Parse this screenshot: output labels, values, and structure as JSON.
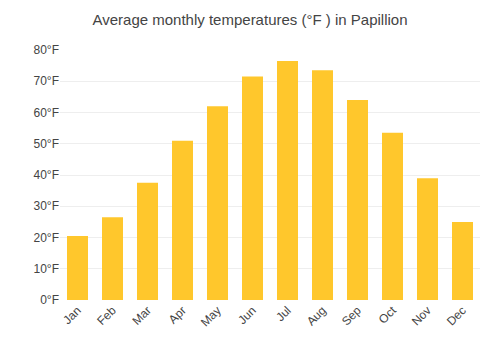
{
  "chart_data": {
    "type": "bar",
    "title": "Average monthly temperatures (°F ) in Papillion",
    "categories": [
      "Jan",
      "Feb",
      "Mar",
      "Apr",
      "May",
      "Jun",
      "Jul",
      "Aug",
      "Sep",
      "Oct",
      "Nov",
      "Dec"
    ],
    "values": [
      20.5,
      26.5,
      37.5,
      51.0,
      62.0,
      71.5,
      76.5,
      73.5,
      64.0,
      53.5,
      39.0,
      25.0
    ],
    "color": "#FFC72C",
    "ylim": [
      0,
      80
    ],
    "yticks": [
      {
        "value": 0,
        "label": "0°F"
      },
      {
        "value": 10,
        "label": "10°F"
      },
      {
        "value": 20,
        "label": "20°F"
      },
      {
        "value": 30,
        "label": "30°F"
      },
      {
        "value": 40,
        "label": "40°F"
      },
      {
        "value": 50,
        "label": "50°F"
      },
      {
        "value": 60,
        "label": "60°F"
      },
      {
        "value": 70,
        "label": "70°F"
      },
      {
        "value": 80,
        "label": "80°F"
      }
    ],
    "grid": true
  }
}
